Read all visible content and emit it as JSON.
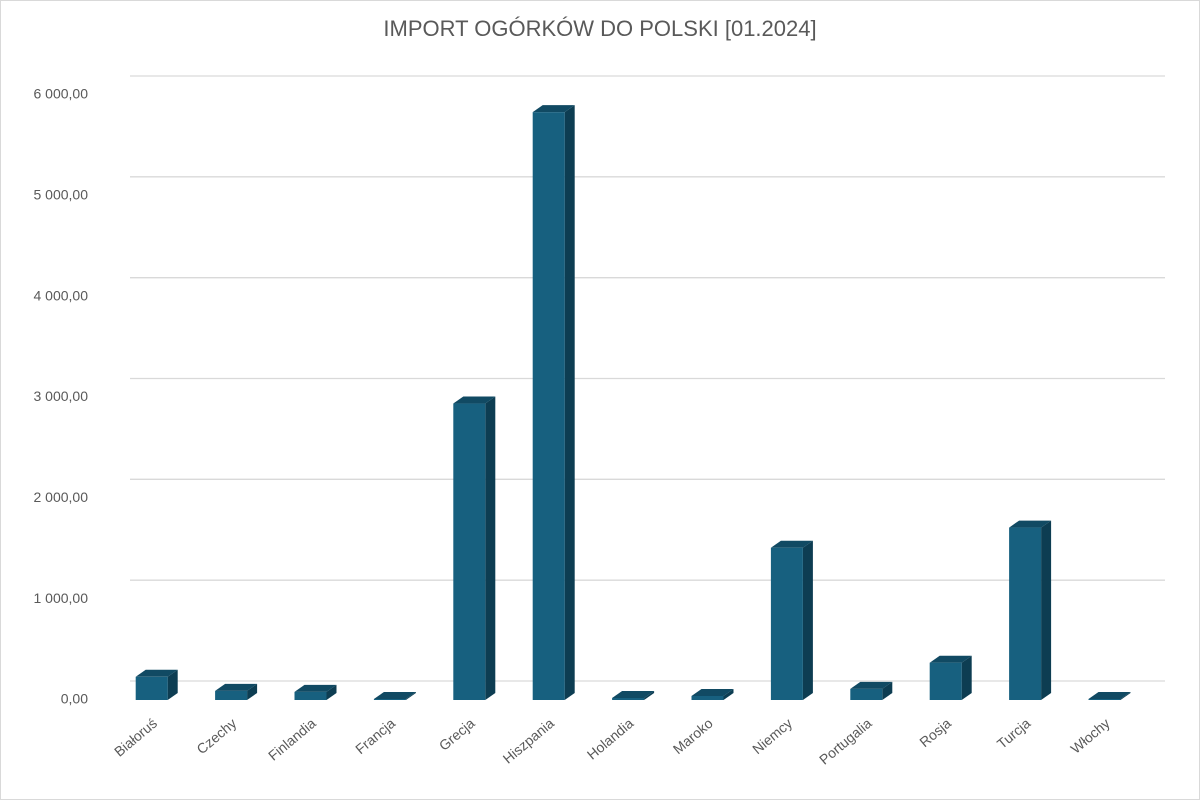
{
  "chart_data": {
    "type": "bar3d",
    "title": "IMPORT OGÓRKÓW DO POLSKI [01.2024]",
    "categories": [
      "Białoruś",
      "Czechy",
      "Finlandia",
      "Francja",
      "Grecja",
      "Hiszpania",
      "Holandia",
      "Maroko",
      "Niemcy",
      "Portugalia",
      "Rosja",
      "Turcja",
      "Włochy"
    ],
    "values": [
      230,
      90,
      80,
      10,
      2940,
      5830,
      20,
      40,
      1510,
      110,
      370,
      1710,
      10
    ],
    "color": "#17607f",
    "ylim": [
      0,
      6000
    ],
    "yticks": [
      {
        "value": 0,
        "label": "0,00"
      },
      {
        "value": 1000,
        "label": "1 000,00"
      },
      {
        "value": 2000,
        "label": "2 000,00"
      },
      {
        "value": 3000,
        "label": "3 000,00"
      },
      {
        "value": 4000,
        "label": "4 000,00"
      },
      {
        "value": 5000,
        "label": "5 000,00"
      },
      {
        "value": 6000,
        "label": "6 000,00"
      }
    ],
    "grid": true
  }
}
